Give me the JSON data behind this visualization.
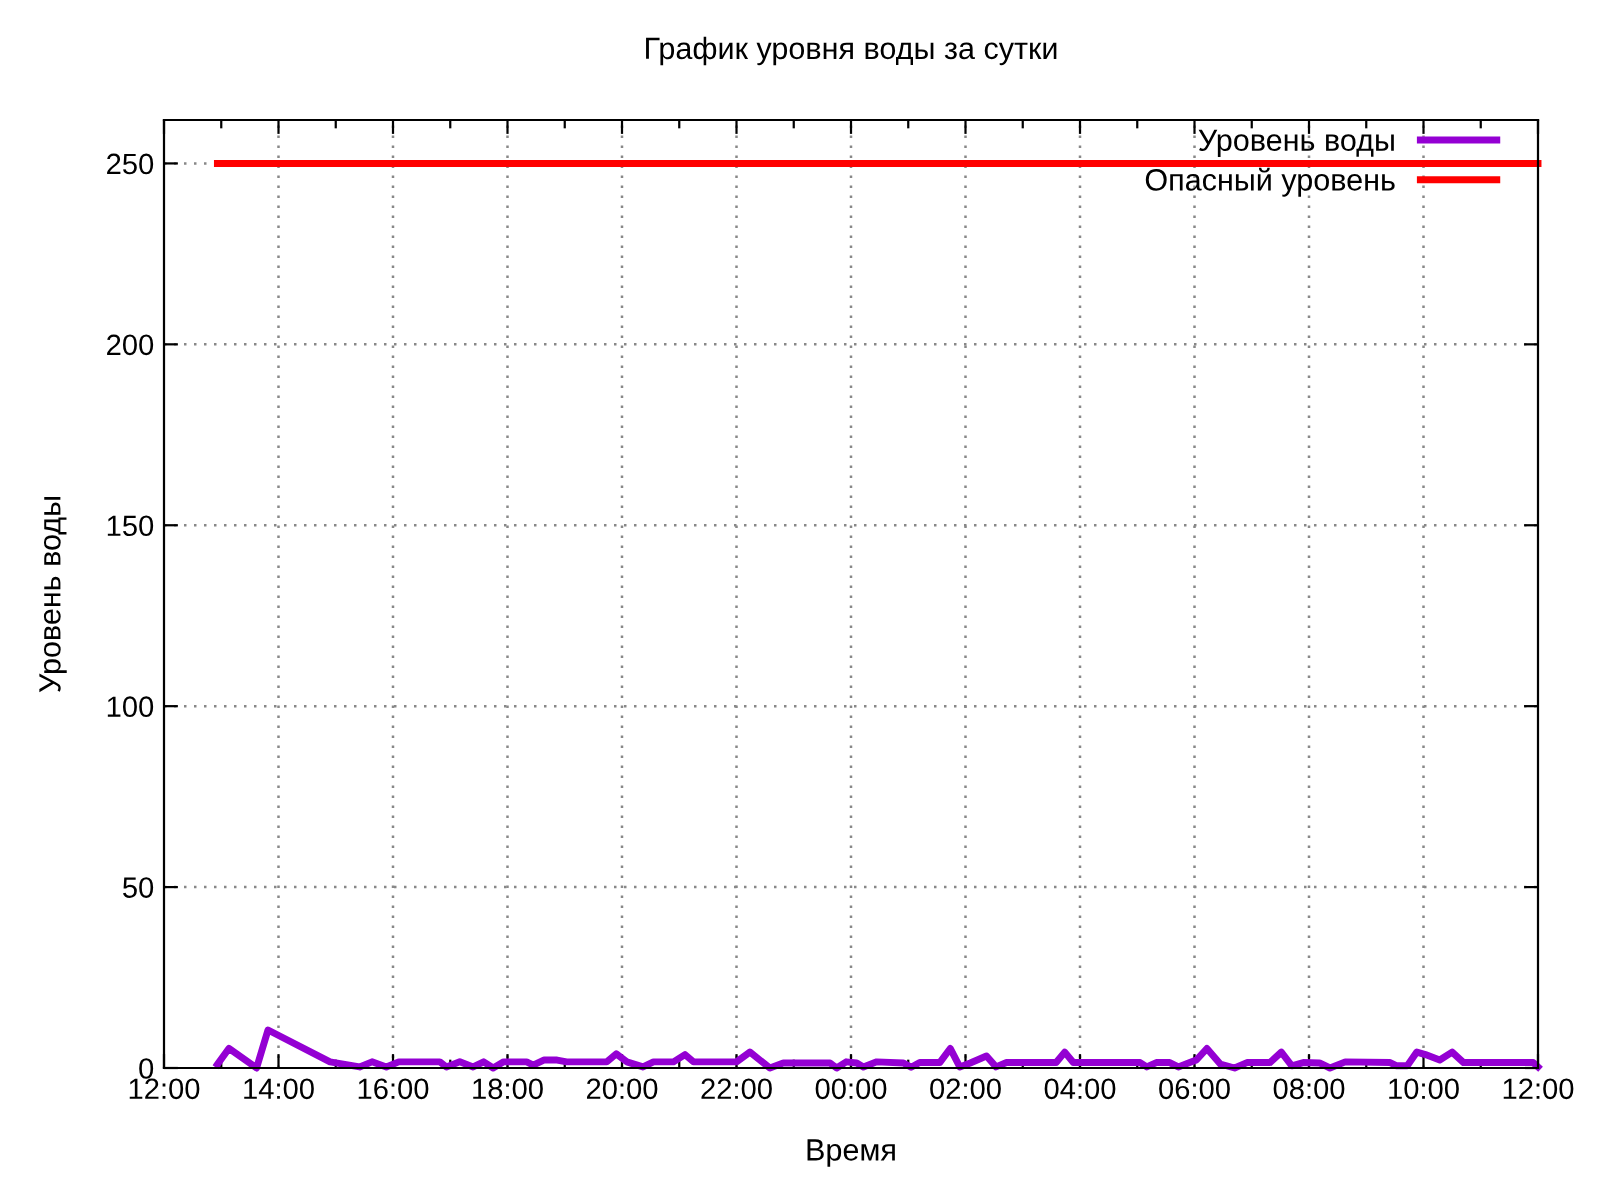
{
  "chart_data": {
    "type": "line",
    "title": "График уровня воды за сутки",
    "xlabel": "Время",
    "ylabel": "Уровень воды",
    "xlim": [
      "2000-01-01T12:00",
      "2000-01-02T12:00"
    ],
    "xticks": [
      {
        "value": "2000-01-01T12:00",
        "label": "12:00"
      },
      {
        "value": "2000-01-01T13:00",
        "label": null
      },
      {
        "value": "2000-01-01T14:00",
        "label": "14:00"
      },
      {
        "value": "2000-01-01T15:00",
        "label": null
      },
      {
        "value": "2000-01-01T16:00",
        "label": "16:00"
      },
      {
        "value": "2000-01-01T17:00",
        "label": null
      },
      {
        "value": "2000-01-01T18:00",
        "label": "18:00"
      },
      {
        "value": "2000-01-01T19:00",
        "label": null
      },
      {
        "value": "2000-01-01T20:00",
        "label": "20:00"
      },
      {
        "value": "2000-01-01T21:00",
        "label": null
      },
      {
        "value": "2000-01-01T22:00",
        "label": "22:00"
      },
      {
        "value": "2000-01-01T23:00",
        "label": null
      },
      {
        "value": "2000-01-02T00:00",
        "label": "00:00"
      },
      {
        "value": "2000-01-02T01:00",
        "label": null
      },
      {
        "value": "2000-01-02T02:00",
        "label": "02:00"
      },
      {
        "value": "2000-01-02T03:00",
        "label": null
      },
      {
        "value": "2000-01-02T04:00",
        "label": "04:00"
      },
      {
        "value": "2000-01-02T05:00",
        "label": null
      },
      {
        "value": "2000-01-02T06:00",
        "label": "06:00"
      },
      {
        "value": "2000-01-02T07:00",
        "label": null
      },
      {
        "value": "2000-01-02T08:00",
        "label": "08:00"
      },
      {
        "value": "2000-01-02T09:00",
        "label": null
      },
      {
        "value": "2000-01-02T10:00",
        "label": "10:00"
      },
      {
        "value": "2000-01-02T11:00",
        "label": null
      },
      {
        "value": "2000-01-02T12:00",
        "label": "12:00"
      }
    ],
    "ylim": [
      0,
      262
    ],
    "yticks": [
      0,
      50,
      100,
      150,
      200,
      250
    ],
    "grid": true,
    "legend": "top right",
    "line_style": "solid",
    "marker": "none",
    "series": [
      {
        "name": "Уровень воды",
        "color": "#9400d3",
        "x": [
          "2000-01-01T12:56",
          "2000-01-01T13:08",
          "2000-01-01T13:37",
          "2000-01-01T13:49",
          "2000-01-01T14:54",
          "2000-01-01T15:25",
          "2000-01-01T15:38",
          "2000-01-01T15:53",
          "2000-01-01T16:06",
          "2000-01-01T16:49",
          "2000-01-01T16:56",
          "2000-01-01T17:10",
          "2000-01-01T17:24",
          "2000-01-01T17:35",
          "2000-01-01T17:45",
          "2000-01-01T17:56",
          "2000-01-01T18:20",
          "2000-01-01T18:27",
          "2000-01-01T18:38",
          "2000-01-01T18:52",
          "2000-01-01T19:02",
          "2000-01-01T19:44",
          "2000-01-01T19:54",
          "2000-01-01T20:05",
          "2000-01-01T20:22",
          "2000-01-01T20:33",
          "2000-01-01T20:54",
          "2000-01-01T21:06",
          "2000-01-01T21:15",
          "2000-01-01T22:00",
          "2000-01-01T22:14",
          "2000-01-01T22:35",
          "2000-01-01T22:49",
          "2000-01-01T23:38",
          "2000-01-01T23:45",
          "2000-01-01T23:55",
          "2000-01-02T00:06",
          "2000-01-02T00:13",
          "2000-01-02T00:27",
          "2000-01-02T00:55",
          "2000-01-02T01:03",
          "2000-01-02T01:12",
          "2000-01-02T01:33",
          "2000-01-02T01:44",
          "2000-01-02T01:54",
          "2000-01-02T02:05",
          "2000-01-02T02:22",
          "2000-01-02T02:32",
          "2000-01-02T02:43",
          "2000-01-02T03:35",
          "2000-01-02T03:44",
          "2000-01-02T03:53",
          "2000-01-02T05:03",
          "2000-01-02T05:10",
          "2000-01-02T05:20",
          "2000-01-02T05:34",
          "2000-01-02T05:43",
          "2000-01-02T05:55",
          "2000-01-02T06:02",
          "2000-01-02T06:13",
          "2000-01-02T06:27",
          "2000-01-02T06:42",
          "2000-01-02T06:55",
          "2000-01-02T07:19",
          "2000-01-02T07:31",
          "2000-01-02T07:42",
          "2000-01-02T07:54",
          "2000-01-02T08:11",
          "2000-01-02T08:22",
          "2000-01-02T08:38",
          "2000-01-02T09:25",
          "2000-01-02T09:32",
          "2000-01-02T09:43",
          "2000-01-02T09:53",
          "2000-01-02T10:02",
          "2000-01-02T10:17",
          "2000-01-02T10:30",
          "2000-01-02T10:42",
          "2000-01-02T11:55",
          "2000-01-02T12:00"
        ],
        "values": [
          1,
          5.4,
          0,
          10.5,
          1.7,
          0.3,
          1.7,
          0.3,
          1.7,
          1.7,
          0.3,
          1.7,
          0.3,
          1.7,
          0,
          1.7,
          1.7,
          0.8,
          2.2,
          2.2,
          1.7,
          1.7,
          3.9,
          1.7,
          0.3,
          1.7,
          1.7,
          3.7,
          1.7,
          1.7,
          4.4,
          0,
          1.4,
          1.4,
          0,
          1.7,
          1.4,
          0.3,
          1.7,
          1.4,
          0.2,
          1.5,
          1.5,
          5.4,
          0.3,
          1.4,
          3.3,
          0.3,
          1.5,
          1.5,
          4.4,
          1.5,
          1.5,
          0.3,
          1.5,
          1.5,
          0.3,
          1.5,
          2.2,
          5.4,
          1.1,
          0,
          1.5,
          1.5,
          4.4,
          0.6,
          1.5,
          1.4,
          0,
          1.7,
          1.5,
          0.6,
          0.6,
          4.4,
          3.7,
          2.2,
          4.4,
          1.5,
          1.5,
          0.3
        ]
      },
      {
        "name": "Опасный уровень",
        "color": "#ff0000",
        "x": [
          "2000-01-01T12:56",
          "2000-01-02T12:00"
        ],
        "values": [
          250,
          250
        ]
      }
    ]
  }
}
